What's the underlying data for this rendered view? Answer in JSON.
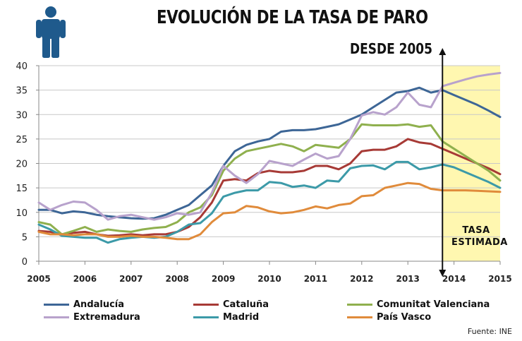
{
  "header": {
    "title": "EVOLUCIÓN DE LA TASA DE PARO",
    "subtitle": "DESDE 2005",
    "icon": "person-icon",
    "icon_color": "#1f5a8c"
  },
  "annotation": {
    "line1": "TASA",
    "line2": "ESTIMADA"
  },
  "source": "Fuente: INE",
  "chart_data": {
    "type": "line",
    "title": "EVOLUCIÓN DE LA TASA DE PARO",
    "subtitle": "DESDE 2005",
    "xlabel": "",
    "ylabel": "",
    "xlim": [
      2005,
      2015
    ],
    "ylim": [
      0,
      40
    ],
    "yticks": [
      0,
      5,
      10,
      15,
      20,
      25,
      30,
      35,
      40
    ],
    "xticks": [
      "2005",
      "2006",
      "2007",
      "2008",
      "2009",
      "2010",
      "2011",
      "2012",
      "2013",
      "2014",
      "2015"
    ],
    "grid": true,
    "legend_position": "bottom",
    "estimate_start": 2013.75,
    "estimate_color": "#fff7b0",
    "x": [
      2005,
      2005.25,
      2005.5,
      2005.75,
      2006,
      2006.25,
      2006.5,
      2006.75,
      2007,
      2007.25,
      2007.5,
      2007.75,
      2008,
      2008.25,
      2008.5,
      2008.75,
      2009,
      2009.25,
      2009.5,
      2009.75,
      2010,
      2010.25,
      2010.5,
      2010.75,
      2011,
      2011.25,
      2011.5,
      2011.75,
      2012,
      2012.25,
      2012.5,
      2012.75,
      2013,
      2013.25,
      2013.5,
      2013.75,
      2014,
      2014.25,
      2014.5,
      2014.75,
      2015
    ],
    "series": [
      {
        "name": "Andalucía",
        "color": "#3d6696",
        "values": [
          10.5,
          10.5,
          9.8,
          10.2,
          10.0,
          9.5,
          9.2,
          9.0,
          8.8,
          8.7,
          8.8,
          9.5,
          10.5,
          11.5,
          13.5,
          15.5,
          19.5,
          22.5,
          23.8,
          24.5,
          25.0,
          26.5,
          26.8,
          26.8,
          27.0,
          27.5,
          28.0,
          29.0,
          30.0,
          31.5,
          33.0,
          34.5,
          34.8,
          35.5,
          34.5,
          35.0,
          34.0,
          33.0,
          32.0,
          30.8,
          29.5
        ]
      },
      {
        "name": "Cataluña",
        "color": "#a73a36",
        "values": [
          6.2,
          6.0,
          5.5,
          5.8,
          6.0,
          5.5,
          5.2,
          5.3,
          5.5,
          5.3,
          5.5,
          5.5,
          6.0,
          7.0,
          9.0,
          12.0,
          16.5,
          16.8,
          16.5,
          18.0,
          18.5,
          18.2,
          18.2,
          18.5,
          19.5,
          19.5,
          18.8,
          20.0,
          22.5,
          22.8,
          22.8,
          23.5,
          25.0,
          24.3,
          24.0,
          23.0,
          22.0,
          21.0,
          20.0,
          19.0,
          17.8
        ]
      },
      {
        "name": "Comunitat Valenciana",
        "color": "#8fb04e",
        "values": [
          8.0,
          7.5,
          5.5,
          6.2,
          7.0,
          6.0,
          6.5,
          6.2,
          6.0,
          6.5,
          6.8,
          7.0,
          8.0,
          10.0,
          11.0,
          13.5,
          18.5,
          21.0,
          22.5,
          23.0,
          23.5,
          24.0,
          23.5,
          22.5,
          23.8,
          23.5,
          23.2,
          25.0,
          28.0,
          27.8,
          27.8,
          27.8,
          28.0,
          27.5,
          27.8,
          24.5,
          23.0,
          21.5,
          20.0,
          18.5,
          16.5
        ]
      },
      {
        "name": "Extremadura",
        "color": "#b8a2cc",
        "values": [
          12.0,
          10.5,
          11.5,
          12.2,
          12.0,
          10.5,
          8.5,
          9.2,
          9.5,
          9.0,
          8.5,
          9.0,
          9.8,
          9.5,
          10.0,
          14.0,
          19.5,
          17.5,
          16.0,
          17.8,
          20.5,
          20.0,
          19.5,
          20.8,
          22.0,
          21.0,
          21.5,
          25.0,
          29.8,
          30.5,
          30.0,
          31.5,
          34.5,
          32.0,
          31.5,
          35.8,
          36.5,
          37.2,
          37.8,
          38.2,
          38.5
        ]
      },
      {
        "name": "Madrid",
        "color": "#3c9aa8",
        "values": [
          7.5,
          6.5,
          5.2,
          5.0,
          4.8,
          4.8,
          3.8,
          4.5,
          4.8,
          5.0,
          4.8,
          5.0,
          6.0,
          7.5,
          7.8,
          9.8,
          13.2,
          14.0,
          14.5,
          14.5,
          16.2,
          16.0,
          15.2,
          15.5,
          15.0,
          16.5,
          16.3,
          19.0,
          19.5,
          19.6,
          18.8,
          20.3,
          20.3,
          18.8,
          19.2,
          19.8,
          19.2,
          18.2,
          17.2,
          16.2,
          15.0
        ]
      },
      {
        "name": "País Vasco",
        "color": "#e08b3b",
        "values": [
          6.0,
          5.5,
          5.5,
          5.3,
          5.5,
          5.5,
          5.0,
          5.0,
          5.2,
          5.0,
          5.0,
          4.8,
          4.5,
          4.5,
          5.5,
          8.0,
          9.8,
          10.0,
          11.3,
          11.0,
          10.2,
          9.8,
          10.0,
          10.5,
          11.2,
          10.8,
          11.5,
          11.8,
          13.3,
          13.5,
          15.0,
          15.5,
          16.0,
          15.8,
          14.8,
          14.5,
          14.5,
          14.5,
          14.4,
          14.3,
          14.2
        ]
      }
    ]
  }
}
